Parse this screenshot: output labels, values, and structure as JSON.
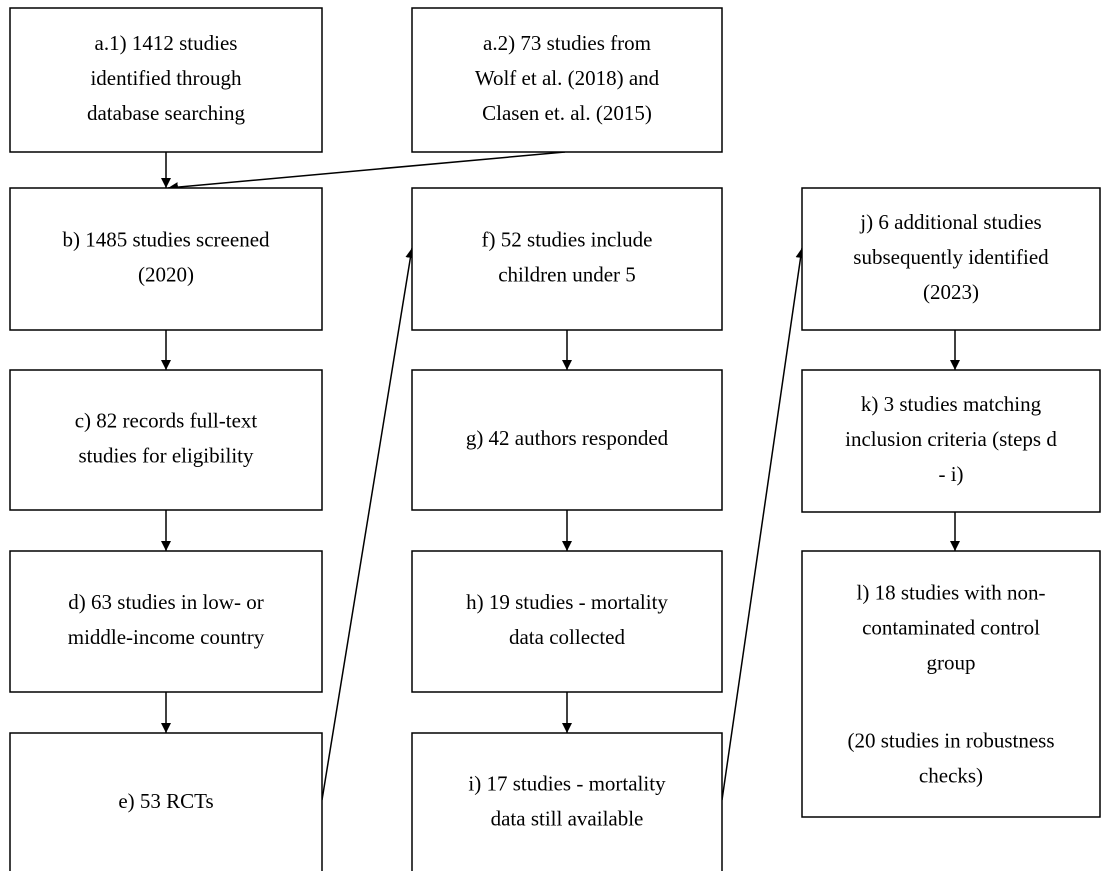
{
  "nodes": [
    {
      "lines": [
        "a.1) 1412 studies",
        "identified through",
        "database searching"
      ]
    },
    {
      "lines": [
        "a.2) 73 studies from",
        "Wolf et al. (2018) and",
        "Clasen et. al. (2015)"
      ]
    },
    {
      "lines": [
        "b) 1485 studies screened",
        "(2020)"
      ]
    },
    {
      "lines": [
        "c) 82 records full-text",
        "studies for eligibility"
      ]
    },
    {
      "lines": [
        "d) 63 studies in low- or",
        "middle-income country"
      ]
    },
    {
      "lines": [
        "e) 53 RCTs"
      ]
    },
    {
      "lines": [
        "f) 52 studies include",
        "children under 5"
      ]
    },
    {
      "lines": [
        "g) 42 authors responded"
      ]
    },
    {
      "lines": [
        "h) 19 studies - mortality",
        "data collected"
      ]
    },
    {
      "lines": [
        "i) 17 studies - mortality",
        "data still available"
      ]
    },
    {
      "lines": [
        "j) 6 additional studies",
        "subsequently identified",
        "(2023)"
      ]
    },
    {
      "lines": [
        "k) 3 studies matching",
        "inclusion criteria (steps d",
        "- i)"
      ]
    },
    {
      "lines": [
        "l) 18 studies with non-",
        "contaminated control",
        "group"
      ],
      "note": [
        "(20 studies in robustness",
        "checks)"
      ]
    }
  ]
}
